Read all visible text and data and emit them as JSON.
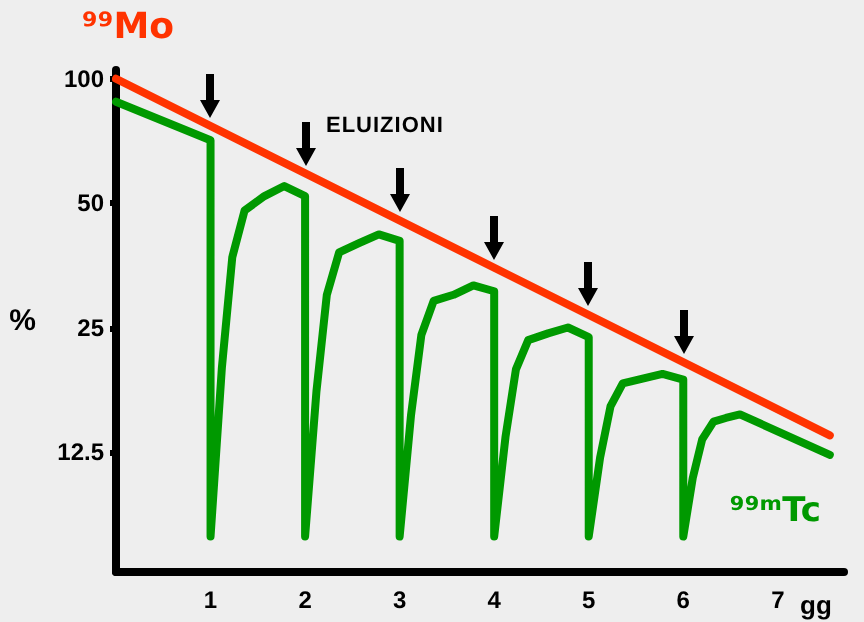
{
  "chart_data": {
    "type": "line",
    "ylabel": "%",
    "xlabel": "gg",
    "annotations": [
      "ELUIZIONI"
    ],
    "log": "y",
    "grid": false,
    "legend": false,
    "marker": "none",
    "line_style": "solid",
    "xlim": [
      0,
      7.7
    ],
    "xticks": [
      1,
      2,
      3,
      4,
      5,
      6,
      7
    ],
    "ylim": [
      6.4,
      105
    ],
    "yticks": [
      12.5,
      25,
      50,
      100
    ],
    "series": [
      {
        "name": "⁹⁹Mo",
        "color": "#ff3300",
        "x": [
          0,
          7.55
        ],
        "values": [
          100,
          13.7
        ]
      },
      {
        "name": "⁹⁹ᵐTc",
        "color": "#009900",
        "x": [
          0,
          1,
          1,
          1.12,
          1.23,
          1.36,
          1.57,
          1.78,
          2,
          2,
          2.12,
          2.23,
          2.36,
          2.57,
          2.78,
          3,
          3,
          3.12,
          3.23,
          3.36,
          3.57,
          3.78,
          4,
          4,
          4.12,
          4.23,
          4.36,
          4.57,
          4.78,
          5,
          5,
          5.12,
          5.23,
          5.36,
          5.57,
          5.78,
          6,
          6,
          6.1,
          6.2,
          6.32,
          6.45,
          6.6,
          7.55
        ],
        "values": [
          88,
          71,
          7.8,
          20,
          37,
          48,
          52,
          55,
          52,
          7.8,
          17.5,
          30,
          38,
          40,
          42,
          40.5,
          7.8,
          15.3,
          24,
          29,
          30,
          31.6,
          30.6,
          7.8,
          13.6,
          19.8,
          23.3,
          24.2,
          25,
          23.7,
          7.8,
          12.1,
          16.1,
          18.3,
          18.8,
          19.3,
          18.7,
          7.8,
          10.8,
          13.4,
          14.8,
          15.1,
          15.4,
          12.3
        ]
      }
    ]
  }
}
